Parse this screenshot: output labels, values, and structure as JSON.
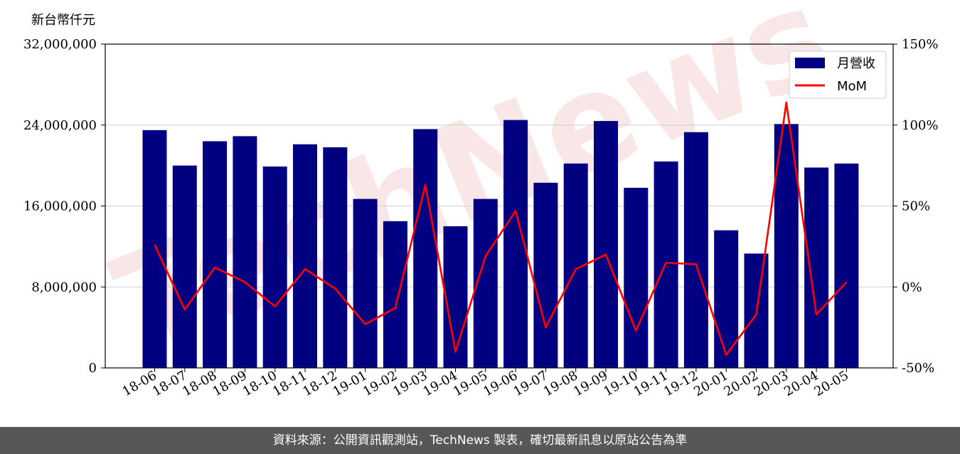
{
  "chart_data": {
    "type": "bar",
    "ylabel": "新台幣仟元",
    "categories": [
      "18-06",
      "18-07",
      "18-08",
      "18-09",
      "18-10",
      "18-11",
      "18-12",
      "19-01",
      "19-02",
      "19-03",
      "19-04",
      "19-05",
      "19-06",
      "19-07",
      "19-08",
      "19-09",
      "19-10",
      "19-11",
      "19-12",
      "20-01",
      "20-02",
      "20-03",
      "20-04",
      "20-05"
    ],
    "ylim": [
      0,
      32000000
    ],
    "yticks": [
      "0",
      "8,000,000",
      "16,000,000",
      "24,000,000",
      "32,000,000"
    ],
    "y2lim": [
      -50,
      150
    ],
    "y2ticks": [
      "-50%",
      "0%",
      "50%",
      "100%",
      "150%"
    ],
    "grid": true,
    "legend_position": "top-right",
    "series": [
      {
        "name": "月營收",
        "type": "bar",
        "color": "#000080",
        "values": [
          23500000,
          20000000,
          22400000,
          22900000,
          19900000,
          22100000,
          21800000,
          16700000,
          14500000,
          23600000,
          14000000,
          16700000,
          24500000,
          18300000,
          20200000,
          24400000,
          17800000,
          20400000,
          23300000,
          13600000,
          11300000,
          24100000,
          19800000,
          20200000
        ]
      },
      {
        "name": "MoM",
        "type": "line",
        "color": "#ff0000",
        "values": [
          26,
          -14,
          12,
          3,
          -12,
          11,
          -1,
          -23,
          -13,
          63,
          -40,
          19,
          47,
          -25,
          11,
          20,
          -27,
          15,
          14,
          -42,
          -17,
          114,
          -17,
          3
        ]
      }
    ]
  },
  "footer": {
    "text": "資料來源：公開資訊觀測站，TechNews 製表，確切最新訊息以原站公告為準"
  },
  "watermark": {
    "text": "TechNews",
    "color": "#f2c8c8"
  }
}
